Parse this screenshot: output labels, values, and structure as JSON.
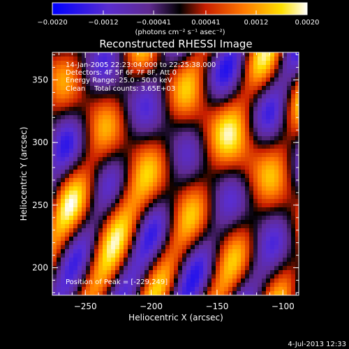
{
  "chart_data": {
    "type": "heatmap",
    "title": "Reconstructed RHESSI Image",
    "xlabel": "Heliocentric X (arcsec)",
    "ylabel": "Heliocentric Y (arcsec)",
    "xlim": [
      -275,
      -88
    ],
    "ylim": [
      178,
      372
    ],
    "x_ticks": [
      -250,
      -200,
      -150,
      -100
    ],
    "x_tick_labels": [
      "−250",
      "−200",
      "−150",
      "−100"
    ],
    "y_ticks": [
      200,
      250,
      300,
      350
    ],
    "y_tick_labels": [
      "200",
      "250",
      "300",
      "350"
    ],
    "colorbar": {
      "min": -0.002,
      "max": 0.002,
      "ticks": [
        -0.002,
        -0.0012,
        -0.00041,
        0.00041,
        0.0012,
        0.002
      ],
      "tick_labels": [
        "−0.0020",
        "−0.0012",
        "−0.00041",
        "0.00041",
        "0.0012",
        "0.0020"
      ],
      "unit_label": "(photons cm⁻² s⁻¹ asec⁻²)",
      "colors": [
        "#0000ff",
        "#5a2dd0",
        "#6a2a9a",
        "#000000",
        "#c81e00",
        "#ff7800",
        "#ffe000",
        "#ffffff"
      ]
    },
    "annotations": [
      "14-Jan-2005 22:23:04.000 to 22:25:38.000",
      "Detectors: 4F 5F 6F 7F 8F, Att 0",
      "Energy Range: 25.0 - 50.0 keV",
      "Clean    Total counts: 3.65E+03"
    ],
    "peak_label": "Position of Peak = [-229,249]",
    "peak_position": [
      -229,
      249
    ],
    "grid": false
  },
  "footer": {
    "timestamp": "4-Jul-2013 12:33"
  }
}
